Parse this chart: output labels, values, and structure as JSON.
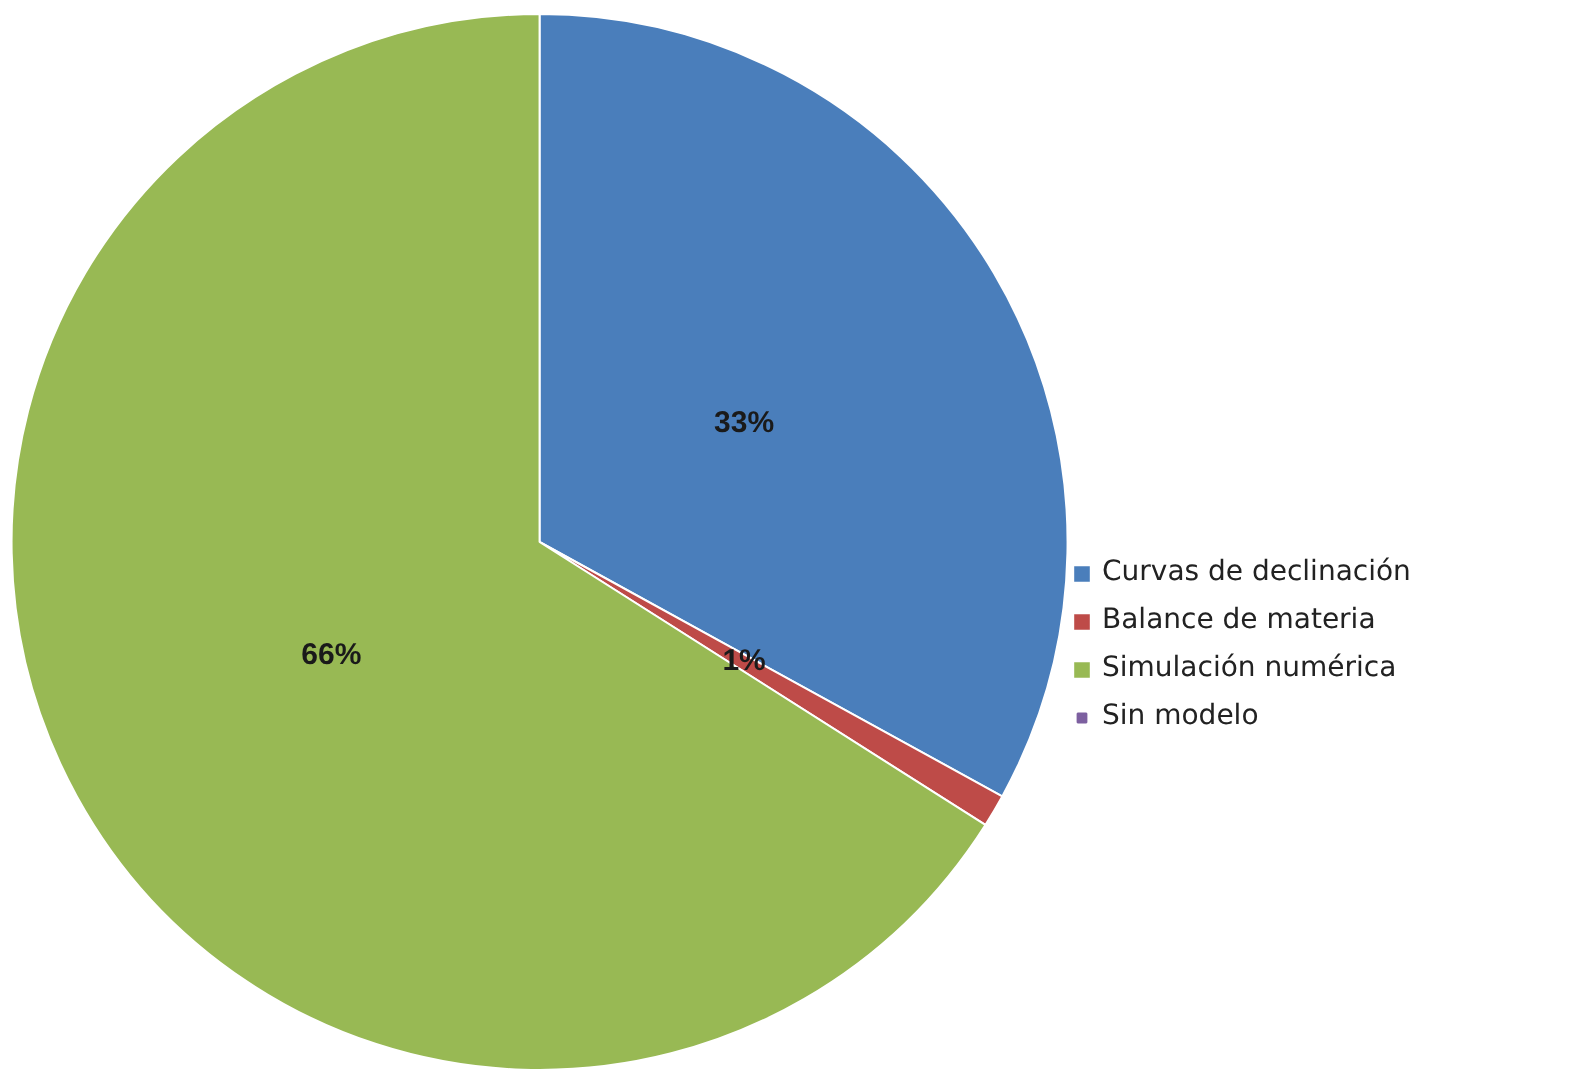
{
  "chart_data": {
    "type": "pie",
    "categories": [
      "Curvas de declinación",
      "Balance de materia",
      "Simulación numérica",
      "Sin modelo"
    ],
    "values": [
      33,
      1,
      66,
      0
    ],
    "colors": [
      "#4a7ebb",
      "#be4b48",
      "#98b954",
      "#7d60a0"
    ],
    "value_labels": [
      "33%",
      "1%",
      "66%",
      null
    ],
    "legend": "right"
  }
}
